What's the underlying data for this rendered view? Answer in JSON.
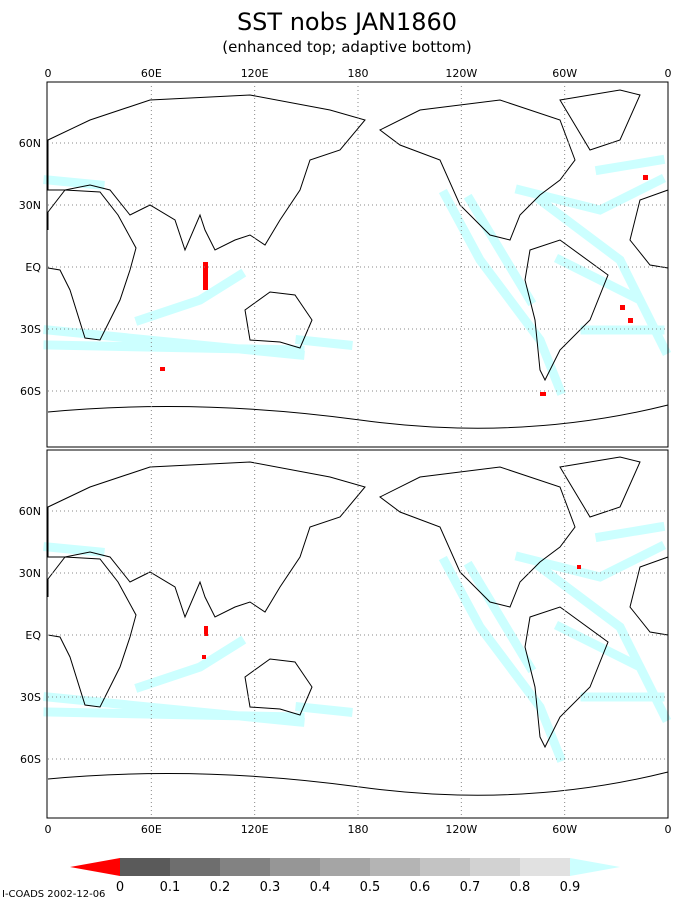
{
  "title": "SST nobs JAN1860",
  "subtitle": "(enhanced top; adaptive bottom)",
  "x_axis_labels": [
    "0",
    "60E",
    "120E",
    "180",
    "120W",
    "60W",
    "0"
  ],
  "y_axis_labels": [
    "60N",
    "30N",
    "EQ",
    "30S",
    "60S"
  ],
  "colorbar": {
    "labels": [
      "0",
      "0.1",
      "0.2",
      "0.3",
      "0.4",
      "0.5",
      "0.6",
      "0.7",
      "0.8",
      "0.9"
    ],
    "below_color": "#ff0000",
    "above_color": "#ccffff",
    "colors": [
      "#5a5a5a",
      "#6e6e6e",
      "#828282",
      "#969696",
      "#a5a5a5",
      "#b4b4b4",
      "#c3c3c3",
      "#d2d2d2",
      "#e1e1e1"
    ]
  },
  "footer": "I-COADS 2002-12-06"
}
